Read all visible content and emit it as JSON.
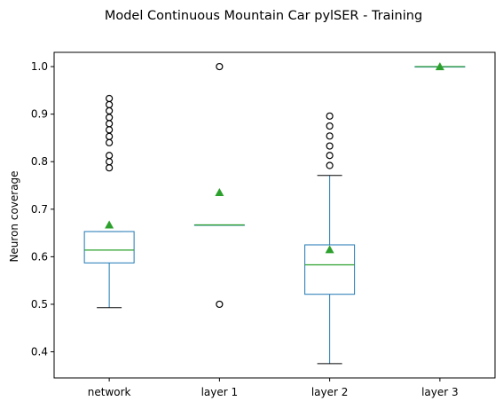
{
  "chart_data": {
    "type": "box",
    "title": "Model Continuous Mountain Car pylSER - Training",
    "xlabel": "",
    "ylabel": "Neuron coverage",
    "ylim": [
      0.345,
      1.03
    ],
    "yticks": [
      "0.4",
      "0.5",
      "0.6",
      "0.7",
      "0.8",
      "0.9",
      "1.0"
    ],
    "categories": [
      "network",
      "layer 1",
      "layer 2",
      "layer 3"
    ],
    "grid": false,
    "box_color": "#1f77b4",
    "median_color": "#2ca02c",
    "mean_color": "#2ca02c",
    "boxes": [
      {
        "label": "network",
        "whisker_low": 0.493,
        "q1": 0.587,
        "median": 0.614,
        "q3": 0.653,
        "whisker_high": 0.653,
        "mean": 0.667,
        "fliers": [
          0.787,
          0.8,
          0.813,
          0.84,
          0.853,
          0.867,
          0.88,
          0.893,
          0.907,
          0.92,
          0.933
        ]
      },
      {
        "label": "layer 1",
        "whisker_low": 0.667,
        "q1": 0.667,
        "median": 0.667,
        "q3": 0.667,
        "whisker_high": 0.667,
        "mean": 0.735,
        "fliers": [
          0.5,
          1.0
        ]
      },
      {
        "label": "layer 2",
        "whisker_low": 0.375,
        "q1": 0.521,
        "median": 0.583,
        "q3": 0.625,
        "whisker_high": 0.771,
        "mean": 0.615,
        "fliers": [
          0.792,
          0.813,
          0.833,
          0.854,
          0.875,
          0.896
        ]
      },
      {
        "label": "layer 3",
        "whisker_low": 1.0,
        "q1": 1.0,
        "median": 1.0,
        "q3": 1.0,
        "whisker_high": 1.0,
        "mean": 1.0,
        "fliers": []
      }
    ]
  }
}
